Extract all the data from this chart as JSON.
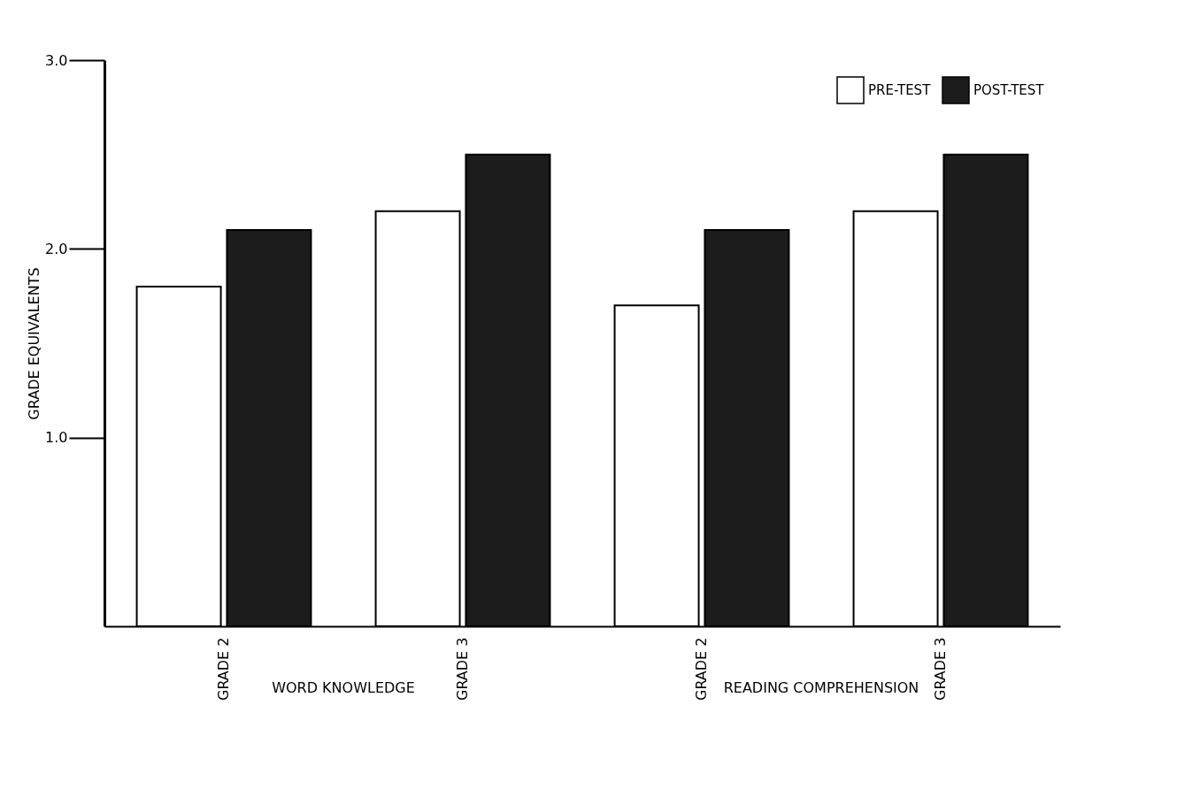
{
  "chart_data": {
    "type": "bar",
    "ylabel": "GRADE EQUIVALENTS",
    "categories": [
      "GRADE 2",
      "GRADE 3",
      "GRADE 2",
      "GRADE 3"
    ],
    "series": [
      {
        "name": "PRE-TEST",
        "color": "#ffffff",
        "values": [
          1.8,
          2.2,
          1.7,
          2.2
        ]
      },
      {
        "name": "POST-TEST",
        "color": "#1c1c1c",
        "values": [
          2.1,
          2.5,
          2.1,
          2.5
        ]
      }
    ],
    "ylim": [
      0,
      3
    ],
    "yticks": [
      {
        "value": 1,
        "label": "1.0"
      },
      {
        "value": 2,
        "label": "2.0"
      },
      {
        "value": 3,
        "label": "3.0"
      }
    ],
    "annotations": [
      "WORD KNOWLEDGE",
      "READING COMPREHENSION"
    ],
    "grid": false,
    "legend": "top right"
  }
}
